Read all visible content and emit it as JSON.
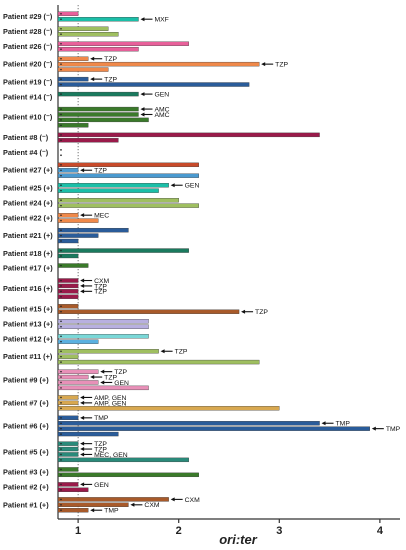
{
  "chart_data": {
    "type": "bar",
    "orientation": "horizontal",
    "xlabel": "ori:ter",
    "xlim": [
      0.8,
      4.2
    ],
    "xticks": [
      "1",
      "2",
      "3",
      "4"
    ],
    "reference_line": 1,
    "grid": false,
    "patients": [
      {
        "label": "Patient #29 (⁻)",
        "bars": [
          {
            "v": 1.0,
            "c": "#e8609a"
          },
          {
            "v": 1.6,
            "c": "#1bbfa8"
          }
        ],
        "ann": [
          {
            "bar": 1,
            "text": "MXF"
          }
        ]
      },
      {
        "label": "Patient #28 (⁻)",
        "bars": [
          {
            "v": 1.3,
            "c": "#9fbf60"
          },
          {
            "v": 1.4,
            "c": "#9fbf60"
          }
        ],
        "ann": []
      },
      {
        "label": "Patient #26 (⁻)",
        "bars": [
          {
            "v": 2.1,
            "c": "#e8609a"
          },
          {
            "v": 1.6,
            "c": "#e8609a"
          }
        ],
        "ann": []
      },
      {
        "label": "Patient #20 (⁻)",
        "bars": [
          {
            "v": 1.1,
            "c": "#f0894a"
          },
          {
            "v": 2.8,
            "c": "#f0894a"
          },
          {
            "v": 1.3,
            "c": "#f0894a"
          }
        ],
        "ann": [
          {
            "bar": 0,
            "text": "TZP"
          },
          {
            "bar": 1,
            "text": "TZP"
          }
        ]
      },
      {
        "label": "Patient #19 (⁻)",
        "bars": [
          {
            "v": 1.1,
            "c": "#2a5c9a"
          },
          {
            "v": 2.7,
            "c": "#2a5c9a"
          }
        ],
        "ann": [
          {
            "bar": 0,
            "text": "TZP"
          }
        ]
      },
      {
        "label": "Patient #14 (⁻)",
        "bars": [
          {
            "v": 1.6,
            "c": "#1a7a5e"
          }
        ],
        "ann": [
          {
            "bar": 0,
            "text": "GEN"
          }
        ]
      },
      {
        "label": "Patient #10 (⁻)",
        "bars": [
          {
            "v": 1.6,
            "c": "#3a7a2a"
          },
          {
            "v": 1.6,
            "c": "#3a7a2a"
          },
          {
            "v": 1.7,
            "c": "#3a7a2a"
          },
          {
            "v": 1.1,
            "c": "#3a7a2a"
          }
        ],
        "ann": [
          {
            "bar": 0,
            "text": "AMC"
          },
          {
            "bar": 1,
            "text": "AMC"
          }
        ]
      },
      {
        "label": "Patient #8 (⁻)",
        "bars": [
          {
            "v": 3.4,
            "c": "#9a1a4a"
          },
          {
            "v": 1.4,
            "c": "#9a1a4a"
          }
        ],
        "ann": []
      },
      {
        "label": "Patient #4 (⁻)",
        "bars": [],
        "ann": []
      },
      {
        "label": "Patient #27 (+)",
        "bars": [
          {
            "v": 2.2,
            "c": "#c84a2a"
          },
          {
            "v": 1.0,
            "c": "#4a9ad0"
          },
          {
            "v": 2.2,
            "c": "#4a9ad0"
          }
        ],
        "ann": [
          {
            "bar": 1,
            "text": "TZP"
          }
        ]
      },
      {
        "label": "Patient #25 (+)",
        "bars": [
          {
            "v": 1.9,
            "c": "#1bbfa8"
          },
          {
            "v": 1.8,
            "c": "#1bbfa8"
          }
        ],
        "ann": [
          {
            "bar": 0,
            "text": "GEN"
          }
        ]
      },
      {
        "label": "Patient #24 (+)",
        "bars": [
          {
            "v": 2.0,
            "c": "#9fbf60"
          },
          {
            "v": 2.2,
            "c": "#9fbf60"
          }
        ],
        "ann": []
      },
      {
        "label": "Patient #22 (+)",
        "bars": [
          {
            "v": 1.0,
            "c": "#f0894a"
          },
          {
            "v": 1.2,
            "c": "#f0894a"
          }
        ],
        "ann": [
          {
            "bar": 0,
            "text": "MEC"
          }
        ]
      },
      {
        "label": "Patient #21 (+)",
        "bars": [
          {
            "v": 1.5,
            "c": "#2a5c9a"
          },
          {
            "v": 1.2,
            "c": "#2a5c9a"
          },
          {
            "v": 1.0,
            "c": "#2a5c9a"
          }
        ],
        "ann": []
      },
      {
        "label": "Patient #18 (+)",
        "bars": [
          {
            "v": 2.1,
            "c": "#1a7a5e"
          },
          {
            "v": 1.0,
            "c": "#1a7a5e"
          }
        ],
        "ann": []
      },
      {
        "label": "Patient #17 (+)",
        "bars": [
          {
            "v": 1.1,
            "c": "#3a7a2a"
          }
        ],
        "ann": []
      },
      {
        "label": "Patient #16 (+)",
        "bars": [
          {
            "v": 1.0,
            "c": "#9a1a4a"
          },
          {
            "v": 1.0,
            "c": "#9a1a4a"
          },
          {
            "v": 1.0,
            "c": "#9a1a4a"
          },
          {
            "v": 1.0,
            "c": "#9a1a4a"
          }
        ],
        "ann": [
          {
            "bar": 0,
            "text": "CXM"
          },
          {
            "bar": 1,
            "text": "TZP"
          },
          {
            "bar": 2,
            "text": "TZP"
          }
        ]
      },
      {
        "label": "Patient #15 (+)",
        "bars": [
          {
            "v": 1.0,
            "c": "#a85a2a"
          },
          {
            "v": 2.6,
            "c": "#a85a2a"
          }
        ],
        "ann": [
          {
            "bar": 1,
            "text": "TZP"
          }
        ]
      },
      {
        "label": "Patient #13 (+)",
        "bars": [
          {
            "v": 1.7,
            "c": "#b8b0e0"
          },
          {
            "v": 1.7,
            "c": "#b8b0e0"
          }
        ],
        "ann": []
      },
      {
        "label": "Patient #12 (+)",
        "bars": [
          {
            "v": 1.7,
            "c": "#7ad8d8"
          },
          {
            "v": 1.2,
            "c": "#5ab0e0"
          }
        ],
        "ann": []
      },
      {
        "label": "Patient #11 (+)",
        "bars": [
          {
            "v": 1.8,
            "c": "#9fbf60"
          },
          {
            "v": 1.0,
            "c": "#9fbf60"
          },
          {
            "v": 2.8,
            "c": "#9fbf60"
          }
        ],
        "ann": [
          {
            "bar": 0,
            "text": "TZP"
          }
        ]
      },
      {
        "label": "Patient #9 (+)",
        "bars": [
          {
            "v": 1.2,
            "c": "#e890b8"
          },
          {
            "v": 1.1,
            "c": "#e890b8"
          },
          {
            "v": 1.2,
            "c": "#e890b8"
          },
          {
            "v": 1.7,
            "c": "#e890b8"
          }
        ],
        "ann": [
          {
            "bar": 0,
            "text": "TZP"
          },
          {
            "bar": 1,
            "text": "TZP"
          },
          {
            "bar": 2,
            "text": "GEN"
          }
        ]
      },
      {
        "label": "Patient #7 (+)",
        "bars": [
          {
            "v": 1.0,
            "c": "#d8a850"
          },
          {
            "v": 1.0,
            "c": "#d8a850"
          },
          {
            "v": 3.0,
            "c": "#d8a850"
          }
        ],
        "ann": [
          {
            "bar": 0,
            "text": "AMP, GEN"
          },
          {
            "bar": 1,
            "text": "AMP, GEN"
          }
        ]
      },
      {
        "label": "Patient #6 (+)",
        "bars": [
          {
            "v": 1.0,
            "c": "#2a5c9a"
          },
          {
            "v": 3.4,
            "c": "#2a5c9a"
          },
          {
            "v": 3.9,
            "c": "#2a5c9a"
          },
          {
            "v": 1.4,
            "c": "#2a5c9a"
          }
        ],
        "ann": [
          {
            "bar": 0,
            "text": "TMP"
          },
          {
            "bar": 1,
            "text": "TMP"
          },
          {
            "bar": 2,
            "text": "TMP"
          }
        ]
      },
      {
        "label": "Patient #5 (+)",
        "bars": [
          {
            "v": 1.0,
            "c": "#2a8a7a"
          },
          {
            "v": 1.0,
            "c": "#2a8a7a"
          },
          {
            "v": 1.0,
            "c": "#2a8a7a"
          },
          {
            "v": 2.1,
            "c": "#2a8a7a"
          }
        ],
        "ann": [
          {
            "bar": 0,
            "text": "TZP"
          },
          {
            "bar": 1,
            "text": "TZP"
          },
          {
            "bar": 2,
            "text": "MEC, GEN"
          }
        ]
      },
      {
        "label": "Patient #3 (+)",
        "bars": [
          {
            "v": 1.0,
            "c": "#3a7a2a"
          },
          {
            "v": 2.2,
            "c": "#3a7a2a"
          }
        ],
        "ann": []
      },
      {
        "label": "Patient #2 (+)",
        "bars": [
          {
            "v": 1.0,
            "c": "#9a1a4a"
          },
          {
            "v": 1.1,
            "c": "#9a1a4a"
          }
        ],
        "ann": [
          {
            "bar": 0,
            "text": "GEN"
          }
        ]
      },
      {
        "label": "Patient #1 (+)",
        "bars": [
          {
            "v": 1.9,
            "c": "#a85a2a"
          },
          {
            "v": 1.5,
            "c": "#a85a2a"
          },
          {
            "v": 1.1,
            "c": "#a85a2a"
          }
        ],
        "ann": [
          {
            "bar": 0,
            "text": "CXM"
          },
          {
            "bar": 1,
            "text": "CXM"
          },
          {
            "bar": 2,
            "text": "TMP"
          }
        ]
      }
    ]
  }
}
